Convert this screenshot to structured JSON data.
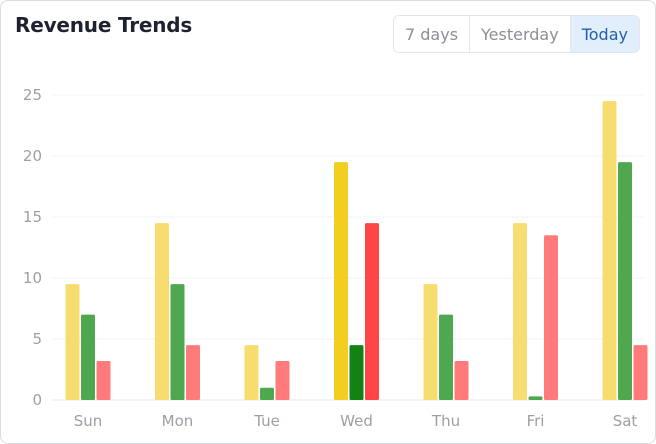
{
  "header": {
    "title": "Revenue Trends",
    "tabs": [
      {
        "label": "7 days",
        "active": false
      },
      {
        "label": "Yesterday",
        "active": false
      },
      {
        "label": "Today",
        "active": true
      }
    ]
  },
  "chart_data": {
    "type": "bar",
    "categories": [
      "Sun",
      "Mon",
      "Tue",
      "Wed",
      "Thu",
      "Fri",
      "Sat"
    ],
    "highlighted_category": "Wed",
    "series": [
      {
        "values": [
          9.5,
          14.5,
          4.5,
          19.5,
          9.5,
          14.5,
          24.5
        ],
        "color": "#f7dc6f",
        "highlight_color": "#f3cd1f"
      },
      {
        "values": [
          7,
          9.5,
          1,
          4.5,
          7,
          0.3,
          19.5
        ],
        "color": "#4fa84f",
        "highlight_color": "#128312"
      },
      {
        "values": [
          3.2,
          4.5,
          3.2,
          14.5,
          3.2,
          13.5,
          4.5
        ],
        "color": "#ff7b7b",
        "highlight_color": "#ff4545"
      }
    ],
    "yticks": [
      0,
      5,
      10,
      15,
      20,
      25
    ],
    "ylim": [
      0,
      25
    ],
    "grid": true,
    "legend": "none"
  }
}
